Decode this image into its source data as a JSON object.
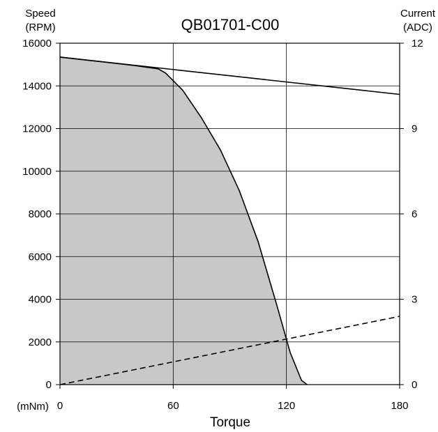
{
  "chart_data": {
    "type": "line",
    "title": "QB01701-C00",
    "left_axis_label_line1": "Speed",
    "left_axis_label_line2": "(RPM)",
    "right_axis_label_line1": "Current",
    "right_axis_label_line2": "(ADC)",
    "xlabel": "Torque",
    "x_unit": "(mNm)",
    "xlim": [
      0,
      180
    ],
    "ylim_left": [
      0,
      16000
    ],
    "ylim_right": [
      0,
      12
    ],
    "x_ticks": [
      0,
      60,
      120,
      180
    ],
    "y_ticks_left": [
      0,
      2000,
      4000,
      6000,
      8000,
      10000,
      12000,
      14000,
      16000
    ],
    "y_ticks_right": [
      0,
      3,
      6,
      9,
      12
    ],
    "grid": true,
    "series": [
      {
        "axis": "left",
        "style": "solid",
        "fill": "#c8c8c8",
        "x": [
          0,
          20,
          40,
          52,
          56,
          65,
          75,
          85,
          95,
          105,
          115,
          122,
          128,
          131
        ],
        "y": [
          15350,
          15150,
          14950,
          14800,
          14600,
          13800,
          12500,
          11000,
          9100,
          6700,
          3700,
          1500,
          200,
          0
        ]
      },
      {
        "axis": "left",
        "style": "solid",
        "x": [
          0,
          180
        ],
        "y": [
          15350,
          13600
        ]
      },
      {
        "axis": "right",
        "style": "dashed",
        "x": [
          0,
          180
        ],
        "y": [
          0,
          2.4
        ]
      }
    ]
  }
}
